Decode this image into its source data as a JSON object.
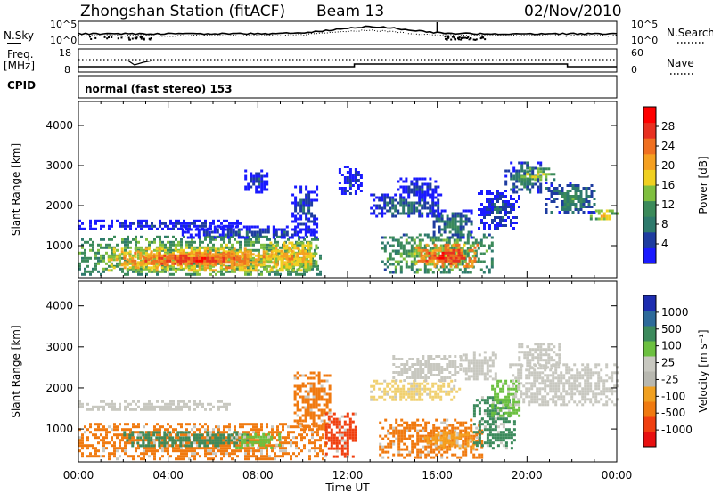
{
  "header": {
    "station": "Zhongshan Station (fitACF)",
    "beam": "Beam 13",
    "date": "02/Nov/2010"
  },
  "noise_panel": {
    "left_label": "N.Sky",
    "right_label": "N.Search",
    "yticks_left": [
      "10^5",
      "10^0"
    ],
    "yticks_right": [
      "10^5",
      "10^0"
    ]
  },
  "freq_panel": {
    "left_label_1": "Freq.",
    "left_label_2": "[MHz]",
    "right_label": "Nave",
    "yticks_left": [
      "18",
      "8"
    ],
    "yticks_right": [
      "60",
      "0"
    ]
  },
  "cpid_panel": {
    "label": "CPID",
    "value": "normal (fast stereo) 153"
  },
  "x_axis": {
    "ticks": [
      "00:00",
      "04:00",
      "08:00",
      "12:00",
      "16:00",
      "20:00",
      "00:00"
    ],
    "label": "Time UT"
  },
  "colors": {
    "power_scale": [
      "#1a1aff",
      "#1e3ca0",
      "#2e7a6c",
      "#3b8a5a",
      "#7fbf3f",
      "#f0d020",
      "#f5a020",
      "#f07020",
      "#e83020",
      "#ff0000"
    ],
    "velocity_scale": [
      "#1d2db0",
      "#2d6a9a",
      "#3c8a5c",
      "#6cc040",
      "#c8c8c0",
      "#b8b8b0",
      "#f0a020",
      "#f07a10",
      "#f04010",
      "#e81010"
    ]
  },
  "chart_data": [
    {
      "type": "heatmap",
      "name": "power",
      "ylabel": "Slant Range [km]",
      "yticks": [
        "1000",
        "2000",
        "3000",
        "4000"
      ],
      "ylim": [
        200,
        4600
      ],
      "xlim_hours": [
        0,
        24
      ],
      "colorbar_label": "Power [dB]",
      "colorbar_ticks": [
        "4",
        "8",
        "12",
        "16",
        "20",
        "24",
        "28"
      ],
      "value_range": [
        0,
        32
      ],
      "blobs": [
        {
          "t0": 0.0,
          "t1": 10.8,
          "r0": 250,
          "r1": 1250,
          "v": 17
        },
        {
          "t0": 1.3,
          "t1": 10.3,
          "r0": 400,
          "r1": 950,
          "v": 24
        },
        {
          "t0": 2.0,
          "t1": 7.5,
          "r0": 520,
          "r1": 850,
          "v": 28
        },
        {
          "t0": 8.4,
          "t1": 10.6,
          "r0": 420,
          "r1": 1100,
          "v": 22
        },
        {
          "t0": 0.0,
          "t1": 7.2,
          "r0": 1430,
          "r1": 1650,
          "v": 6
        },
        {
          "t0": 4.6,
          "t1": 10.6,
          "r0": 1200,
          "r1": 1500,
          "v": 7
        },
        {
          "t0": 9.5,
          "t1": 10.6,
          "r0": 1350,
          "r1": 2500,
          "v": 7
        },
        {
          "t0": 13.5,
          "t1": 18.4,
          "r0": 300,
          "r1": 1300,
          "v": 16
        },
        {
          "t0": 15.0,
          "t1": 17.8,
          "r0": 500,
          "r1": 1050,
          "v": 28
        },
        {
          "t0": 13.0,
          "t1": 16.2,
          "r0": 1700,
          "r1": 2300,
          "v": 9
        },
        {
          "t0": 15.8,
          "t1": 17.5,
          "r0": 1200,
          "r1": 1900,
          "v": 11
        },
        {
          "t0": 14.2,
          "t1": 16.0,
          "r0": 2200,
          "r1": 2700,
          "v": 6
        },
        {
          "t0": 17.8,
          "t1": 19.6,
          "r0": 1400,
          "r1": 2400,
          "v": 7
        },
        {
          "t0": 19.0,
          "t1": 20.6,
          "r0": 2300,
          "r1": 3100,
          "v": 10
        },
        {
          "t0": 19.6,
          "t1": 21.2,
          "r0": 2650,
          "r1": 2950,
          "v": 18
        },
        {
          "t0": 20.8,
          "t1": 23.0,
          "r0": 1800,
          "r1": 2600,
          "v": 11
        },
        {
          "t0": 22.8,
          "t1": 24.0,
          "r0": 1650,
          "r1": 1900,
          "v": 20
        },
        {
          "t0": 7.4,
          "t1": 8.4,
          "r0": 2300,
          "r1": 2900,
          "v": 6
        },
        {
          "t0": 11.6,
          "t1": 12.6,
          "r0": 2300,
          "r1": 3000,
          "v": 6
        }
      ]
    },
    {
      "type": "heatmap",
      "name": "velocity",
      "ylabel": "Slant Range [km]",
      "yticks": [
        "1000",
        "2000",
        "3000",
        "4000"
      ],
      "ylim": [
        200,
        4600
      ],
      "xlim_hours": [
        0,
        24
      ],
      "colorbar_label": "Velocity [m s⁻¹]",
      "colorbar_ticks": [
        "1000",
        "500",
        "100",
        "25",
        "-25",
        "-100",
        "-500",
        "-1000"
      ],
      "blobs": [
        {
          "t0": 0.0,
          "t1": 11.0,
          "r0": 250,
          "r1": 1150,
          "c": "#f07a10"
        },
        {
          "t0": 2.0,
          "t1": 7.5,
          "r0": 600,
          "r1": 950,
          "c": "#3c8a5c"
        },
        {
          "t0": 7.0,
          "t1": 9.0,
          "r0": 550,
          "r1": 900,
          "c": "#6cc040"
        },
        {
          "t0": 0.0,
          "t1": 7.0,
          "r0": 1450,
          "r1": 1700,
          "c": "#c8c8c0"
        },
        {
          "t0": 9.6,
          "t1": 11.2,
          "r0": 1000,
          "r1": 2400,
          "c": "#f07a10"
        },
        {
          "t0": 11.0,
          "t1": 12.4,
          "r0": 300,
          "r1": 1400,
          "c": "#f04010"
        },
        {
          "t0": 13.4,
          "t1": 18.0,
          "r0": 300,
          "r1": 1250,
          "c": "#f07a10"
        },
        {
          "t0": 15.4,
          "t1": 17.6,
          "r0": 500,
          "r1": 950,
          "c": "#f5a020"
        },
        {
          "t0": 17.6,
          "t1": 19.4,
          "r0": 500,
          "r1": 1800,
          "c": "#3c8a5c"
        },
        {
          "t0": 18.4,
          "t1": 19.6,
          "r0": 1300,
          "r1": 2200,
          "c": "#6cc040"
        },
        {
          "t0": 13.0,
          "t1": 17.0,
          "r0": 1700,
          "r1": 2200,
          "c": "#f0d070"
        },
        {
          "t0": 14.0,
          "t1": 17.0,
          "r0": 2200,
          "r1": 2800,
          "c": "#c8c8c0"
        },
        {
          "t0": 19.2,
          "t1": 24.0,
          "r0": 1600,
          "r1": 2600,
          "c": "#c8c8c0"
        },
        {
          "t0": 19.6,
          "t1": 21.4,
          "r0": 2500,
          "r1": 3100,
          "c": "#c8c8c0"
        },
        {
          "t0": 17.0,
          "t1": 18.6,
          "r0": 2200,
          "r1": 2900,
          "c": "#c8c8c0"
        }
      ]
    }
  ]
}
